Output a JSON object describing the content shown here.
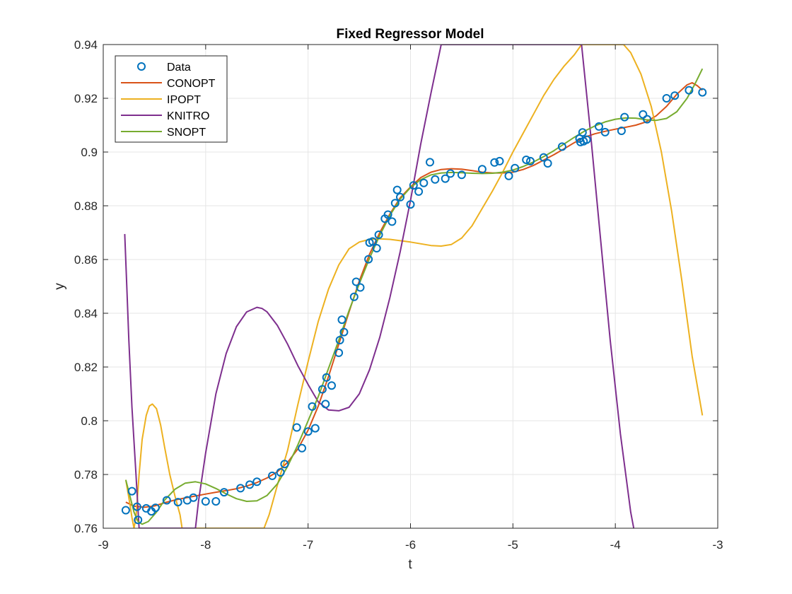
{
  "chart_data": {
    "type": "line",
    "title": "Fixed Regressor Model",
    "xlabel": "t",
    "ylabel": "y",
    "xlim": [
      -9,
      -3
    ],
    "ylim": [
      0.76,
      0.94
    ],
    "xticks": [
      -9,
      -8,
      -7,
      -6,
      -5,
      -4,
      -3
    ],
    "yticks": [
      0.76,
      0.78,
      0.8,
      0.82,
      0.84,
      0.86,
      0.88,
      0.9,
      0.92,
      0.94
    ],
    "xtick_labels": [
      "-9",
      "-8",
      "-7",
      "-6",
      "-5",
      "-4",
      "-3"
    ],
    "ytick_labels": [
      "0.76",
      "0.78",
      "0.8",
      "0.82",
      "0.84",
      "0.86",
      "0.88",
      "0.9",
      "0.92",
      "0.94"
    ],
    "grid": true,
    "legend_position": "top-left",
    "series": [
      {
        "name": "Data",
        "kind": "scatter",
        "marker": "circle",
        "color": "#0072BD",
        "points": [
          [
            -8.78,
            0.7667
          ],
          [
            -8.72,
            0.7738
          ],
          [
            -8.67,
            0.768
          ],
          [
            -8.66,
            0.7631
          ],
          [
            -8.58,
            0.7674
          ],
          [
            -8.53,
            0.7663
          ],
          [
            -8.49,
            0.7676
          ],
          [
            -8.38,
            0.7704
          ],
          [
            -8.27,
            0.7697
          ],
          [
            -8.18,
            0.7704
          ],
          [
            -8.12,
            0.7714
          ],
          [
            -8.0,
            0.77
          ],
          [
            -7.9,
            0.77
          ],
          [
            -7.82,
            0.7734
          ],
          [
            -7.66,
            0.7749
          ],
          [
            -7.57,
            0.7762
          ],
          [
            -7.5,
            0.7773
          ],
          [
            -7.35,
            0.7795
          ],
          [
            -7.27,
            0.7808
          ],
          [
            -7.23,
            0.7839
          ],
          [
            -7.11,
            0.7975
          ],
          [
            -7.06,
            0.7898
          ],
          [
            -7.0,
            0.796
          ],
          [
            -6.96,
            0.8053
          ],
          [
            -6.93,
            0.7972
          ],
          [
            -6.86,
            0.8117
          ],
          [
            -6.83,
            0.8062
          ],
          [
            -6.82,
            0.8161
          ],
          [
            -6.77,
            0.8131
          ],
          [
            -6.7,
            0.8253
          ],
          [
            -6.69,
            0.83
          ],
          [
            -6.67,
            0.8376
          ],
          [
            -6.65,
            0.833
          ],
          [
            -6.55,
            0.8461
          ],
          [
            -6.53,
            0.8517
          ],
          [
            -6.49,
            0.8496
          ],
          [
            -6.41,
            0.8601
          ],
          [
            -6.4,
            0.8663
          ],
          [
            -6.37,
            0.8667
          ],
          [
            -6.33,
            0.8642
          ],
          [
            -6.31,
            0.8692
          ],
          [
            -6.25,
            0.8752
          ],
          [
            -6.22,
            0.8767
          ],
          [
            -6.18,
            0.8741
          ],
          [
            -6.15,
            0.881
          ],
          [
            -6.13,
            0.8859
          ],
          [
            -6.1,
            0.8832
          ],
          [
            -6.0,
            0.8805
          ],
          [
            -5.97,
            0.8876
          ],
          [
            -5.92,
            0.8853
          ],
          [
            -5.87,
            0.8885
          ],
          [
            -5.81,
            0.8962
          ],
          [
            -5.76,
            0.8898
          ],
          [
            -5.66,
            0.8901
          ],
          [
            -5.61,
            0.892
          ],
          [
            -5.5,
            0.8915
          ],
          [
            -5.3,
            0.8936
          ],
          [
            -5.18,
            0.8961
          ],
          [
            -5.13,
            0.8966
          ],
          [
            -5.04,
            0.8911
          ],
          [
            -4.98,
            0.894
          ],
          [
            -4.87,
            0.8971
          ],
          [
            -4.83,
            0.8966
          ],
          [
            -4.7,
            0.898
          ],
          [
            -4.66,
            0.8958
          ],
          [
            -4.52,
            0.902
          ],
          [
            -4.35,
            0.905
          ],
          [
            -4.34,
            0.9037
          ],
          [
            -4.32,
            0.9073
          ],
          [
            -4.31,
            0.904
          ],
          [
            -4.28,
            0.9046
          ],
          [
            -4.16,
            0.9095
          ],
          [
            -4.1,
            0.9074
          ],
          [
            -3.94,
            0.9079
          ],
          [
            -3.91,
            0.913
          ],
          [
            -3.73,
            0.914
          ],
          [
            -3.69,
            0.9122
          ],
          [
            -3.5,
            0.92
          ],
          [
            -3.42,
            0.921
          ],
          [
            -3.28,
            0.923
          ],
          [
            -3.15,
            0.9222
          ]
        ]
      },
      {
        "name": "CONOPT",
        "kind": "line",
        "color": "#D95319",
        "points": [
          [
            -8.78,
            0.7697
          ],
          [
            -8.7,
            0.7682
          ],
          [
            -8.6,
            0.7678
          ],
          [
            -8.5,
            0.7683
          ],
          [
            -8.4,
            0.7695
          ],
          [
            -8.3,
            0.7705
          ],
          [
            -8.2,
            0.7713
          ],
          [
            -8.1,
            0.772
          ],
          [
            -8.0,
            0.7727
          ],
          [
            -7.9,
            0.7734
          ],
          [
            -7.8,
            0.774
          ],
          [
            -7.7,
            0.7747
          ],
          [
            -7.6,
            0.7757
          ],
          [
            -7.5,
            0.777
          ],
          [
            -7.4,
            0.7787
          ],
          [
            -7.3,
            0.781
          ],
          [
            -7.2,
            0.7845
          ],
          [
            -7.1,
            0.7895
          ],
          [
            -7.0,
            0.7965
          ],
          [
            -6.9,
            0.8055
          ],
          [
            -6.8,
            0.8165
          ],
          [
            -6.7,
            0.8285
          ],
          [
            -6.6,
            0.8405
          ],
          [
            -6.5,
            0.852
          ],
          [
            -6.4,
            0.862
          ],
          [
            -6.3,
            0.87
          ],
          [
            -6.2,
            0.877
          ],
          [
            -6.1,
            0.883
          ],
          [
            -6.0,
            0.887
          ],
          [
            -5.9,
            0.8905
          ],
          [
            -5.8,
            0.8925
          ],
          [
            -5.7,
            0.8935
          ],
          [
            -5.6,
            0.8938
          ],
          [
            -5.5,
            0.8936
          ],
          [
            -5.4,
            0.8931
          ],
          [
            -5.3,
            0.8925
          ],
          [
            -5.2,
            0.8922
          ],
          [
            -5.1,
            0.8922
          ],
          [
            -5.0,
            0.8925
          ],
          [
            -4.9,
            0.8935
          ],
          [
            -4.8,
            0.895
          ],
          [
            -4.7,
            0.897
          ],
          [
            -4.6,
            0.899
          ],
          [
            -4.5,
            0.9012
          ],
          [
            -4.4,
            0.9035
          ],
          [
            -4.3,
            0.9055
          ],
          [
            -4.2,
            0.9068
          ],
          [
            -4.1,
            0.9077
          ],
          [
            -4.0,
            0.9085
          ],
          [
            -3.9,
            0.9092
          ],
          [
            -3.8,
            0.91
          ],
          [
            -3.7,
            0.9112
          ],
          [
            -3.6,
            0.9135
          ],
          [
            -3.5,
            0.917
          ],
          [
            -3.4,
            0.9215
          ],
          [
            -3.3,
            0.925
          ],
          [
            -3.25,
            0.9258
          ],
          [
            -3.2,
            0.9247
          ],
          [
            -3.15,
            0.923
          ]
        ]
      },
      {
        "name": "IPOPT",
        "kind": "line",
        "color": "#EDB120",
        "points": [
          [
            -8.78,
            0.778
          ],
          [
            -8.74,
            0.769
          ],
          [
            -8.72,
            0.764
          ],
          [
            -8.7,
            0.76
          ],
          [
            -8.68,
            0.764
          ],
          [
            -8.65,
            0.78
          ],
          [
            -8.62,
            0.793
          ],
          [
            -8.58,
            0.802
          ],
          [
            -8.55,
            0.8055
          ],
          [
            -8.52,
            0.8062
          ],
          [
            -8.48,
            0.8045
          ],
          [
            -8.44,
            0.7985
          ],
          [
            -8.4,
            0.79
          ],
          [
            -8.35,
            0.78
          ],
          [
            -8.3,
            0.772
          ],
          [
            -8.25,
            0.765
          ],
          [
            -8.23,
            0.76
          ],
          [
            -7.43,
            0.76
          ],
          [
            -7.38,
            0.765
          ],
          [
            -7.3,
            0.776
          ],
          [
            -7.2,
            0.789
          ],
          [
            -7.1,
            0.806
          ],
          [
            -7.0,
            0.822
          ],
          [
            -6.9,
            0.837
          ],
          [
            -6.8,
            0.849
          ],
          [
            -6.7,
            0.858
          ],
          [
            -6.6,
            0.864
          ],
          [
            -6.5,
            0.8665
          ],
          [
            -6.4,
            0.8675
          ],
          [
            -6.3,
            0.8677
          ],
          [
            -6.2,
            0.8675
          ],
          [
            -6.0,
            0.8665
          ],
          [
            -5.8,
            0.8652
          ],
          [
            -5.7,
            0.865
          ],
          [
            -5.6,
            0.8656
          ],
          [
            -5.5,
            0.868
          ],
          [
            -5.4,
            0.8725
          ],
          [
            -5.3,
            0.879
          ],
          [
            -5.2,
            0.8855
          ],
          [
            -5.1,
            0.8925
          ],
          [
            -5.0,
            0.9
          ],
          [
            -4.9,
            0.907
          ],
          [
            -4.8,
            0.914
          ],
          [
            -4.7,
            0.921
          ],
          [
            -4.6,
            0.927
          ],
          [
            -4.5,
            0.932
          ],
          [
            -4.4,
            0.9362
          ],
          [
            -4.33,
            0.94
          ],
          [
            -3.92,
            0.94
          ],
          [
            -3.85,
            0.937
          ],
          [
            -3.75,
            0.929
          ],
          [
            -3.65,
            0.917
          ],
          [
            -3.55,
            0.9
          ],
          [
            -3.45,
            0.878
          ],
          [
            -3.35,
            0.852
          ],
          [
            -3.25,
            0.824
          ],
          [
            -3.15,
            0.802
          ]
        ]
      },
      {
        "name": "KNITRO",
        "kind": "line",
        "color": "#7E2F8E",
        "points": [
          [
            -8.79,
            0.8695
          ],
          [
            -8.77,
            0.85
          ],
          [
            -8.75,
            0.83
          ],
          [
            -8.72,
            0.805
          ],
          [
            -8.68,
            0.78
          ],
          [
            -8.65,
            0.76
          ],
          [
            -8.1,
            0.76
          ],
          [
            -8.07,
            0.77
          ],
          [
            -8.0,
            0.788
          ],
          [
            -7.9,
            0.81
          ],
          [
            -7.8,
            0.825
          ],
          [
            -7.7,
            0.835
          ],
          [
            -7.6,
            0.8405
          ],
          [
            -7.5,
            0.8422
          ],
          [
            -7.45,
            0.8418
          ],
          [
            -7.4,
            0.8405
          ],
          [
            -7.3,
            0.8355
          ],
          [
            -7.2,
            0.8285
          ],
          [
            -7.1,
            0.8205
          ],
          [
            -7.0,
            0.8135
          ],
          [
            -6.9,
            0.807
          ],
          [
            -6.8,
            0.804
          ],
          [
            -6.7,
            0.8037
          ],
          [
            -6.6,
            0.805
          ],
          [
            -6.5,
            0.81
          ],
          [
            -6.4,
            0.819
          ],
          [
            -6.3,
            0.831
          ],
          [
            -6.2,
            0.846
          ],
          [
            -6.1,
            0.863
          ],
          [
            -6.0,
            0.882
          ],
          [
            -5.9,
            0.903
          ],
          [
            -5.8,
            0.922
          ],
          [
            -5.7,
            0.94
          ],
          [
            -4.33,
            0.94
          ],
          [
            -4.25,
            0.91
          ],
          [
            -4.15,
            0.87
          ],
          [
            -4.05,
            0.83
          ],
          [
            -3.95,
            0.795
          ],
          [
            -3.85,
            0.766
          ],
          [
            -3.82,
            0.76
          ]
        ]
      },
      {
        "name": "SNOPT",
        "kind": "line",
        "color": "#77AC30",
        "points": [
          [
            -8.78,
            0.778
          ],
          [
            -8.74,
            0.772
          ],
          [
            -8.7,
            0.766
          ],
          [
            -8.66,
            0.7625
          ],
          [
            -8.62,
            0.7615
          ],
          [
            -8.56,
            0.7625
          ],
          [
            -8.48,
            0.766
          ],
          [
            -8.4,
            0.7705
          ],
          [
            -8.3,
            0.7745
          ],
          [
            -8.2,
            0.7768
          ],
          [
            -8.1,
            0.7773
          ],
          [
            -8.0,
            0.7765
          ],
          [
            -7.9,
            0.7748
          ],
          [
            -7.8,
            0.7728
          ],
          [
            -7.7,
            0.771
          ],
          [
            -7.6,
            0.77
          ],
          [
            -7.5,
            0.7702
          ],
          [
            -7.4,
            0.7722
          ],
          [
            -7.3,
            0.7765
          ],
          [
            -7.2,
            0.783
          ],
          [
            -7.1,
            0.791
          ],
          [
            -7.0,
            0.8
          ],
          [
            -6.9,
            0.809
          ],
          [
            -6.8,
            0.8195
          ],
          [
            -6.7,
            0.83
          ],
          [
            -6.6,
            0.841
          ],
          [
            -6.5,
            0.851
          ],
          [
            -6.4,
            0.8605
          ],
          [
            -6.3,
            0.869
          ],
          [
            -6.2,
            0.8765
          ],
          [
            -6.1,
            0.8825
          ],
          [
            -6.0,
            0.8868
          ],
          [
            -5.9,
            0.8897
          ],
          [
            -5.8,
            0.8915
          ],
          [
            -5.7,
            0.8922
          ],
          [
            -5.6,
            0.8924
          ],
          [
            -5.5,
            0.8923
          ],
          [
            -5.4,
            0.8921
          ],
          [
            -5.3,
            0.892
          ],
          [
            -5.2,
            0.8921
          ],
          [
            -5.1,
            0.8925
          ],
          [
            -5.0,
            0.8933
          ],
          [
            -4.9,
            0.8946
          ],
          [
            -4.8,
            0.8963
          ],
          [
            -4.7,
            0.8983
          ],
          [
            -4.6,
            0.9005
          ],
          [
            -4.5,
            0.903
          ],
          [
            -4.4,
            0.9055
          ],
          [
            -4.3,
            0.9078
          ],
          [
            -4.2,
            0.9097
          ],
          [
            -4.1,
            0.9112
          ],
          [
            -4.0,
            0.9122
          ],
          [
            -3.9,
            0.9127
          ],
          [
            -3.8,
            0.9126
          ],
          [
            -3.7,
            0.912
          ],
          [
            -3.6,
            0.9118
          ],
          [
            -3.5,
            0.9125
          ],
          [
            -3.4,
            0.915
          ],
          [
            -3.3,
            0.92
          ],
          [
            -3.22,
            0.9255
          ],
          [
            -3.15,
            0.931
          ]
        ]
      }
    ]
  }
}
